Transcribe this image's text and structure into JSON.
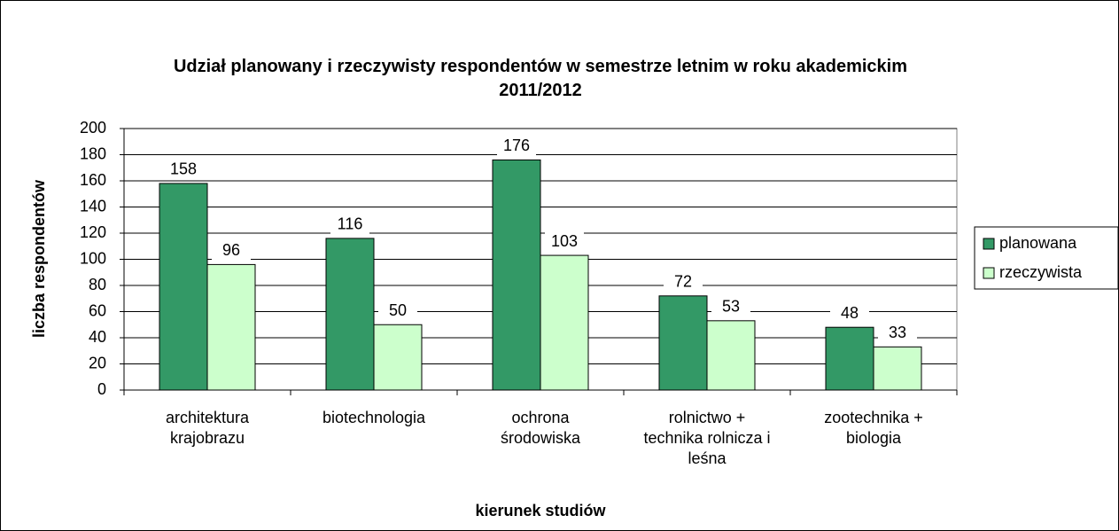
{
  "chart_data": {
    "type": "bar",
    "title": "Udział planowany i rzeczywisty respondentów w semestrze letnim w roku akademickim 2011/2012",
    "x_label": "kierunek studiów",
    "y_label": "liczba respondentów",
    "categories": [
      "architektura krajobrazu",
      "biotechnologia",
      "ochrona środowiska",
      "rolnictwo + technika rolnicza i leśna",
      "zootechnika + biologia"
    ],
    "series": [
      {
        "name": "planowana",
        "color": "#339966",
        "values": [
          158,
          116,
          176,
          72,
          48
        ]
      },
      {
        "name": "rzeczywista",
        "color": "#ccffcc",
        "values": [
          96,
          50,
          103,
          53,
          33
        ]
      }
    ],
    "ylim": [
      0,
      200
    ],
    "yticks": [
      0,
      20,
      40,
      60,
      80,
      100,
      120,
      140,
      160,
      180,
      200
    ],
    "grid": true,
    "legend": "right"
  }
}
